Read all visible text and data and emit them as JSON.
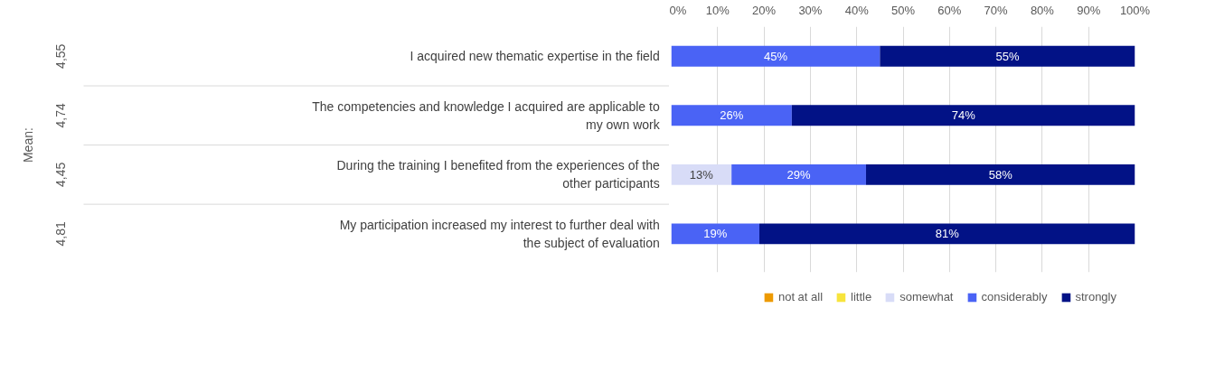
{
  "chart_data": {
    "type": "bar",
    "orientation": "horizontal",
    "stacked": true,
    "categories": [
      "I acquired new thematic expertise in the field",
      "The competencies and knowledge I acquired are applicable to my own work",
      "During the training I benefited from the experiences of the other participants",
      "My participation increased my interest to further deal with the subject of evaluation"
    ],
    "series": [
      {
        "name": "not at all",
        "color": "#ed9a00",
        "values": [
          0,
          0,
          0,
          0
        ],
        "value_labels": [
          null,
          null,
          null,
          null
        ]
      },
      {
        "name": "little",
        "color": "#f7e43c",
        "values": [
          0,
          0,
          0,
          0
        ],
        "value_labels": [
          null,
          null,
          null,
          null
        ]
      },
      {
        "name": "somewhat",
        "color": "#d8dcf7",
        "values": [
          0,
          0,
          13,
          0
        ],
        "value_labels": [
          null,
          null,
          "13%",
          null
        ]
      },
      {
        "name": "considerably",
        "color": "#4a63f5",
        "values": [
          45,
          26,
          29,
          19
        ],
        "value_labels": [
          "45%",
          "26%",
          "29%",
          "19%"
        ]
      },
      {
        "name": "strongly",
        "color": "#021286",
        "values": [
          55,
          74,
          58,
          81
        ],
        "value_labels": [
          "55%",
          "74%",
          "58%",
          "81%"
        ]
      }
    ],
    "annotations": [
      "Mean:",
      "4,55",
      "4,74",
      "4,45",
      "4,81"
    ],
    "xlim": [
      0,
      100
    ],
    "xticks": [
      {
        "value": 0,
        "label": "0%"
      },
      {
        "value": 10,
        "label": "10%"
      },
      {
        "value": 20,
        "label": "20%"
      },
      {
        "value": 30,
        "label": "30%"
      },
      {
        "value": 40,
        "label": "40%"
      },
      {
        "value": 50,
        "label": "50%"
      },
      {
        "value": 60,
        "label": "60%"
      },
      {
        "value": 70,
        "label": "70%"
      },
      {
        "value": 80,
        "label": "80%"
      },
      {
        "value": 90,
        "label": "90%"
      },
      {
        "value": 100,
        "label": "100%"
      }
    ],
    "grid": "x",
    "legend": "bottom"
  }
}
